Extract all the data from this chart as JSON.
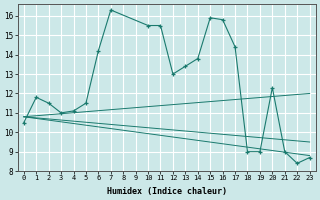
{
  "xlabel": "Humidex (Indice chaleur)",
  "xlim": [
    -0.5,
    23.5
  ],
  "ylim": [
    8,
    16.6
  ],
  "yticks": [
    8,
    9,
    10,
    11,
    12,
    13,
    14,
    15,
    16
  ],
  "xticks": [
    0,
    1,
    2,
    3,
    4,
    5,
    6,
    7,
    8,
    9,
    10,
    11,
    12,
    13,
    14,
    15,
    16,
    17,
    18,
    19,
    20,
    21,
    22,
    23
  ],
  "background_color": "#cce8e8",
  "grid_color": "#ffffff",
  "line_color": "#1a7a6e",
  "main_series": {
    "x": [
      0,
      1,
      2,
      3,
      4,
      5,
      6,
      7,
      10,
      11,
      12,
      13,
      14,
      15,
      16,
      17,
      18,
      19,
      20,
      21,
      22,
      23
    ],
    "y": [
      10.5,
      11.8,
      11.5,
      11.0,
      11.1,
      11.5,
      14.2,
      16.3,
      15.5,
      15.5,
      13.0,
      13.4,
      13.8,
      15.9,
      15.8,
      14.4,
      9.0,
      9.0,
      12.3,
      9.0,
      8.4,
      8.7
    ]
  },
  "trend_lines": [
    {
      "x": [
        0,
        23
      ],
      "y": [
        10.8,
        12.0
      ]
    },
    {
      "x": [
        0,
        23
      ],
      "y": [
        10.8,
        9.5
      ]
    },
    {
      "x": [
        0,
        23
      ],
      "y": [
        10.8,
        8.8
      ]
    }
  ]
}
